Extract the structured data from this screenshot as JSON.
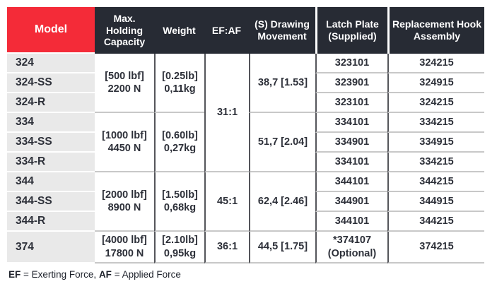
{
  "colors": {
    "accent_red": "#F42B38",
    "header_dark": "#272B34",
    "row_label_bg": "#E9E9E9",
    "border_dark": "#54555A",
    "border_light": "#C8C8C8",
    "text_dark": "#2D3039"
  },
  "header": {
    "model": "Model",
    "capacity": "Max. Holding Capacity",
    "weight": "Weight",
    "efaf": "EF:AF",
    "drawing": "(S) Drawing Movement",
    "latch": "Latch Plate (Supplied)",
    "hook": "Replacement Hook Assembly"
  },
  "groups": [
    {
      "models": [
        "324",
        "324-SS",
        "324-R"
      ],
      "capacity": {
        "line1": "[500 lbf]",
        "line2": "2200 N"
      },
      "weight": {
        "line1": "[0.25lb]",
        "line2": "0,11kg"
      },
      "drawing": "38,7 [1.53]",
      "latch": [
        "323101",
        "323901",
        "323101"
      ],
      "hook": [
        "324215",
        "324915",
        "324215"
      ]
    },
    {
      "models": [
        "334",
        "334-SS",
        "334-R"
      ],
      "capacity": {
        "line1": "[1000 lbf]",
        "line2": "4450 N"
      },
      "weight": {
        "line1": "[0.60lb]",
        "line2": "0,27kg"
      },
      "drawing": "51,7 [2.04]",
      "latch": [
        "334101",
        "334901",
        "334101"
      ],
      "hook": [
        "334215",
        "334915",
        "334215"
      ]
    },
    {
      "models": [
        "344",
        "344-SS",
        "344-R"
      ],
      "capacity": {
        "line1": "[2000 lbf]",
        "line2": "8900 N"
      },
      "weight": {
        "line1": "[1.50lb]",
        "line2": "0,68kg"
      },
      "drawing": "62,4 [2.46]",
      "latch": [
        "344101",
        "344901",
        "344101"
      ],
      "hook": [
        "344215",
        "344915",
        "344215"
      ]
    },
    {
      "models": [
        "374"
      ],
      "capacity": {
        "line1": "[4000 lbf]",
        "line2": "17800 N"
      },
      "weight": {
        "line1": "[2.10lb]",
        "line2": "0,95kg"
      },
      "drawing": "44,5 [1.75]",
      "latch_line1": "*374107",
      "latch_line2": "(Optional)",
      "hook": [
        "374215"
      ]
    }
  ],
  "efaf_values": [
    {
      "label": "31:1",
      "rows_spanned": 6
    },
    {
      "label": "45:1",
      "rows_spanned": 3
    },
    {
      "label": "36:1",
      "rows_spanned": 1
    }
  ],
  "footnote": {
    "ef": "EF",
    "ef_def": " = Exerting Force, ",
    "af": "AF",
    "af_def": " = Applied Force"
  }
}
